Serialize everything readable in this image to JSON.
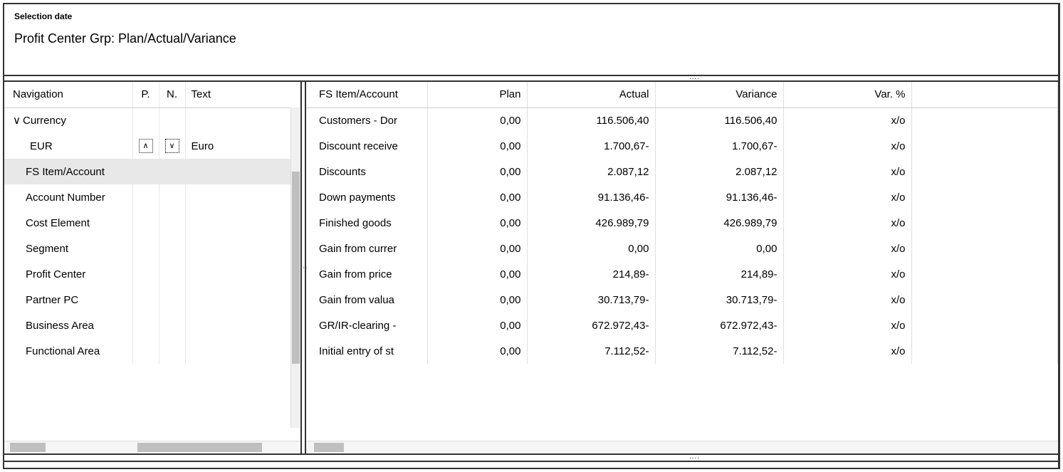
{
  "header": {
    "selection_label": "Selection date",
    "title": "Profit Center Grp: Plan/Actual/Variance"
  },
  "nav": {
    "columns": {
      "nav": "Navigation",
      "p": "P.",
      "n": "N.",
      "text": "Text"
    },
    "rows": [
      {
        "label": "Currency",
        "indent": 0,
        "expand_icon": "∨",
        "p": "",
        "n": "",
        "text": "",
        "hl": false
      },
      {
        "label": "EUR",
        "indent": 1,
        "expand_icon": "",
        "p": "∧",
        "n": "∨",
        "text": "Euro",
        "hl": false,
        "n_focus": true
      },
      {
        "label": "FS Item/Account",
        "indent": 2,
        "expand_icon": "",
        "p": "",
        "n": "",
        "text": "",
        "hl": true
      },
      {
        "label": "Account Number",
        "indent": 2,
        "expand_icon": "",
        "p": "",
        "n": "",
        "text": "",
        "hl": false
      },
      {
        "label": "Cost Element",
        "indent": 2,
        "expand_icon": "",
        "p": "",
        "n": "",
        "text": "",
        "hl": false
      },
      {
        "label": "Segment",
        "indent": 2,
        "expand_icon": "",
        "p": "",
        "n": "",
        "text": "",
        "hl": false
      },
      {
        "label": "Profit Center",
        "indent": 2,
        "expand_icon": "",
        "p": "",
        "n": "",
        "text": "",
        "hl": false
      },
      {
        "label": "Partner PC",
        "indent": 2,
        "expand_icon": "",
        "p": "",
        "n": "",
        "text": "",
        "hl": false
      },
      {
        "label": "Business Area",
        "indent": 2,
        "expand_icon": "",
        "p": "",
        "n": "",
        "text": "",
        "hl": false
      },
      {
        "label": "Functional Area",
        "indent": 2,
        "expand_icon": "",
        "p": "",
        "n": "",
        "text": "",
        "hl": false
      }
    ],
    "vscroll": {
      "thumb_top_pct": 20,
      "thumb_height_pct": 60
    },
    "hscroll": {
      "segments": [
        {
          "left_pct": 2,
          "width_pct": 12
        },
        {
          "left_pct": 45,
          "width_pct": 42
        }
      ]
    }
  },
  "grid": {
    "columns": [
      "FS Item/Account",
      "Plan",
      "Actual",
      "Variance",
      "Var. %"
    ],
    "rows": [
      {
        "item": "Customers - Dor",
        "plan": "0,00",
        "actual": "116.506,40",
        "variance": "116.506,40",
        "varpct": "x/o"
      },
      {
        "item": "Discount receive",
        "plan": "0,00",
        "actual": "1.700,67-",
        "variance": "1.700,67-",
        "varpct": "x/o"
      },
      {
        "item": "Discounts",
        "plan": "0,00",
        "actual": "2.087,12",
        "variance": "2.087,12",
        "varpct": "x/o"
      },
      {
        "item": "Down payments",
        "plan": "0,00",
        "actual": "91.136,46-",
        "variance": "91.136,46-",
        "varpct": "x/o"
      },
      {
        "item": "Finished goods",
        "plan": "0,00",
        "actual": "426.989,79",
        "variance": "426.989,79",
        "varpct": "x/o"
      },
      {
        "item": "Gain from currer",
        "plan": "0,00",
        "actual": "0,00",
        "variance": "0,00",
        "varpct": "x/o"
      },
      {
        "item": "Gain from price",
        "plan": "0,00",
        "actual": "214,89-",
        "variance": "214,89-",
        "varpct": "x/o"
      },
      {
        "item": "Gain from valua",
        "plan": "0,00",
        "actual": "30.713,79-",
        "variance": "30.713,79-",
        "varpct": "x/o"
      },
      {
        "item": "GR/IR-clearing -",
        "plan": "0,00",
        "actual": "672.972,43-",
        "variance": "672.972,43-",
        "varpct": "x/o"
      },
      {
        "item": "Initial entry of st",
        "plan": "0,00",
        "actual": "7.112,52-",
        "variance": "7.112,52-",
        "varpct": "x/o"
      }
    ],
    "hscroll": {
      "segments": [
        {
          "left_pct": 1,
          "width_pct": 4
        }
      ]
    }
  },
  "style": {
    "border_color": "#333333",
    "grid_line_color": "#e0e0e0",
    "highlight_bg": "#e8e8e8",
    "scrollbar_track": "#f0f0f0",
    "scrollbar_thumb": "#bfbfbf",
    "font_family": "Arial",
    "header_fontsize_pt": 12,
    "title_fontsize_pt": 18,
    "cell_fontsize_pt": 15
  }
}
